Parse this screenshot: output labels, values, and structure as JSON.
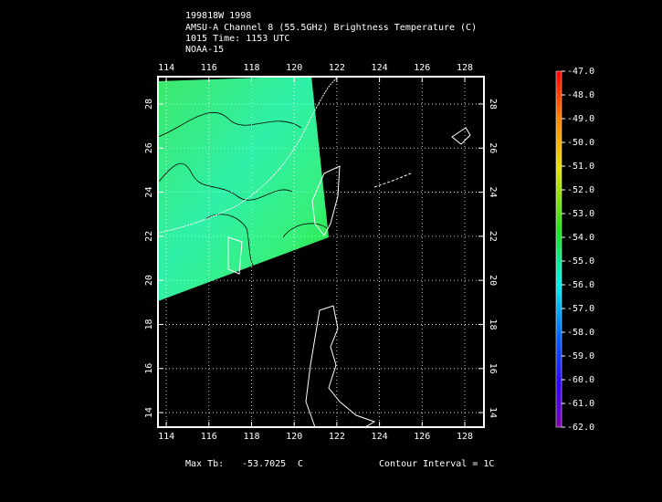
{
  "header": {
    "lines": [
      "199818W 1998",
      "AMSU-A Channel 8 (55.5GHz) Brightness Temperature (C)",
      "1015 Time: 1153 UTC",
      "NOAA-15"
    ]
  },
  "map": {
    "lonlim": [
      113.61,
      128.9
    ],
    "latlim": [
      13.34,
      29.24
    ],
    "lonticks": [
      114,
      116,
      118,
      120,
      122,
      124,
      126,
      128
    ],
    "latticks": [
      14,
      16,
      18,
      20,
      22,
      24,
      26,
      28
    ],
    "grid": true
  },
  "colorbar": {
    "lim": [
      -62,
      -47
    ],
    "ticks": [
      {
        "value": -47,
        "label": "-47.0"
      },
      {
        "value": -48,
        "label": "-48.0"
      },
      {
        "value": -49,
        "label": "-49.0"
      },
      {
        "value": -50,
        "label": "-50.0"
      },
      {
        "value": -51,
        "label": "-51.0"
      },
      {
        "value": -52,
        "label": "-52.0"
      },
      {
        "value": -53,
        "label": "-53.0"
      },
      {
        "value": -54,
        "label": "-54.0"
      },
      {
        "value": -55,
        "label": "-55.0"
      },
      {
        "value": -56,
        "label": "-56.0"
      },
      {
        "value": -57,
        "label": "-57.0"
      },
      {
        "value": -58,
        "label": "-58.0"
      },
      {
        "value": -59,
        "label": "-59.0"
      },
      {
        "value": -60,
        "label": "-60.0"
      },
      {
        "value": -61,
        "label": "-61.0"
      },
      {
        "value": -62,
        "label": "-62.0"
      }
    ]
  },
  "footer": {
    "max_label": "Max Tb:",
    "max_value": -53.7025,
    "max_unit": "C",
    "contour": "Contour Interval = 1C"
  }
}
